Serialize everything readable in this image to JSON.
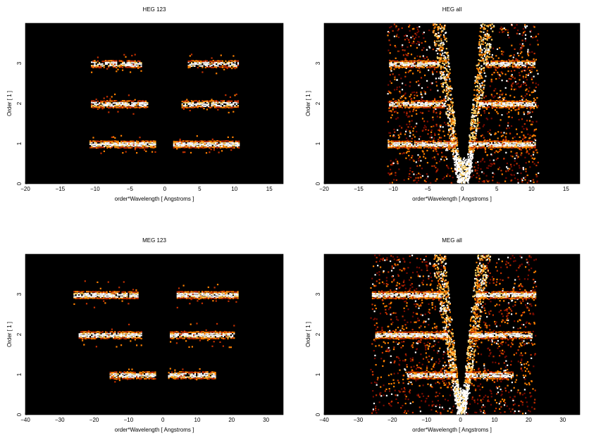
{
  "chart_data": [
    {
      "type": "heatmap",
      "title": "HEG 123",
      "xlabel": "order*Wavelength [ Angstroms ]",
      "ylabel": "Order [ 1 ]",
      "xlim": [
        -20,
        17
      ],
      "ylim": [
        0,
        4
      ],
      "xticks": [
        "−20",
        "−15",
        "−10",
        "−5",
        "0",
        "5",
        "10",
        "15"
      ],
      "xtick_values": [
        -20,
        -15,
        -10,
        -5,
        0,
        5,
        10,
        15
      ],
      "yticks": [
        "0",
        "1",
        "2",
        "3"
      ],
      "ytick_values": [
        0,
        1,
        2,
        3
      ],
      "grid": false,
      "background": "#000000",
      "colormap": [
        "#2a0000",
        "#7a0a00",
        "#c43000",
        "#ff8000",
        "#ffd060",
        "#ffffff"
      ],
      "bands": [
        {
          "order": 1,
          "x0": -10.8,
          "x1": -1.2,
          "density": 0.95,
          "halfwidth": 0.09
        },
        {
          "order": 1,
          "x0": 1.2,
          "x1": 10.7,
          "density": 0.95,
          "halfwidth": 0.09
        },
        {
          "order": 2,
          "x0": -10.6,
          "x1": -2.3,
          "density": 0.85,
          "halfwidth": 0.1
        },
        {
          "order": 2,
          "x0": 2.4,
          "x1": 10.6,
          "density": 0.85,
          "halfwidth": 0.1
        },
        {
          "order": 3,
          "x0": -10.6,
          "x1": -3.2,
          "density": 0.8,
          "halfwidth": 0.1
        },
        {
          "order": 3,
          "x0": 3.3,
          "x1": 10.6,
          "density": 0.8,
          "halfwidth": 0.1
        }
      ],
      "wedge": false
    },
    {
      "type": "heatmap",
      "title": "HEG all",
      "xlabel": "order*Wavelength [ Angstroms ]",
      "ylabel": "Order [ 1 ]",
      "xlim": [
        -20,
        17
      ],
      "ylim": [
        0,
        4
      ],
      "xticks": [
        "−20",
        "−15",
        "−10",
        "−5",
        "0",
        "5",
        "10",
        "15"
      ],
      "xtick_values": [
        -20,
        -15,
        -10,
        -5,
        0,
        5,
        10,
        15
      ],
      "yticks": [
        "0",
        "1",
        "2",
        "3"
      ],
      "ytick_values": [
        0,
        1,
        2,
        3
      ],
      "grid": false,
      "background": "#000000",
      "colormap": [
        "#2a0000",
        "#7a0a00",
        "#c43000",
        "#ff8000",
        "#ffd060",
        "#ffffff"
      ],
      "bands": [
        {
          "order": 1,
          "x0": -10.8,
          "x1": -1.0,
          "density": 0.95,
          "halfwidth": 0.1
        },
        {
          "order": 1,
          "x0": 1.0,
          "x1": 10.7,
          "density": 0.95,
          "halfwidth": 0.1
        },
        {
          "order": 2,
          "x0": -10.6,
          "x1": -2.5,
          "density": 0.9,
          "halfwidth": 0.1
        },
        {
          "order": 2,
          "x0": 2.4,
          "x1": 10.6,
          "density": 0.9,
          "halfwidth": 0.1
        },
        {
          "order": 3,
          "x0": -10.6,
          "x1": -3.3,
          "density": 0.85,
          "halfwidth": 0.1
        },
        {
          "order": 3,
          "x0": 3.4,
          "x1": 10.6,
          "density": 0.85,
          "halfwidth": 0.1
        }
      ],
      "wedge": true,
      "x_extent": [
        -10.9,
        10.9
      ]
    },
    {
      "type": "heatmap",
      "title": "MEG 123",
      "xlabel": "order*Wavelength [ Angstroms ]",
      "ylabel": "Order [ 1 ]",
      "xlim": [
        -40,
        35
      ],
      "ylim": [
        0,
        4
      ],
      "xticks": [
        "−40",
        "−30",
        "−20",
        "−10",
        "0",
        "10",
        "20",
        "30"
      ],
      "xtick_values": [
        -40,
        -30,
        -20,
        -10,
        0,
        10,
        20,
        30
      ],
      "yticks": [
        "0",
        "1",
        "2",
        "3"
      ],
      "ytick_values": [
        0,
        1,
        2,
        3
      ],
      "grid": false,
      "background": "#000000",
      "colormap": [
        "#2a0000",
        "#7a0a00",
        "#c43000",
        "#ff8000",
        "#ffd060",
        "#ffffff"
      ],
      "bands": [
        {
          "order": 1,
          "x0": -15.5,
          "x1": -2.0,
          "density": 0.85,
          "halfwidth": 0.07
        },
        {
          "order": 1,
          "x0": 1.5,
          "x1": 15.5,
          "density": 0.85,
          "halfwidth": 0.07
        },
        {
          "order": 2,
          "x0": -24.5,
          "x1": -6.0,
          "density": 0.9,
          "halfwidth": 0.12
        },
        {
          "order": 2,
          "x0": 2.0,
          "x1": 21.0,
          "density": 0.9,
          "halfwidth": 0.12
        },
        {
          "order": 3,
          "x0": -26.0,
          "x1": -7.0,
          "density": 0.95,
          "halfwidth": 0.14
        },
        {
          "order": 3,
          "x0": 4.0,
          "x1": 22.0,
          "density": 0.95,
          "halfwidth": 0.14
        }
      ],
      "wedge": false
    },
    {
      "type": "heatmap",
      "title": "MEG all",
      "xlabel": "order*Wavelength [ Angstroms ]",
      "ylabel": "Order [ 1 ]",
      "xlim": [
        -40,
        35
      ],
      "ylim": [
        0,
        4
      ],
      "xticks": [
        "−40",
        "−30",
        "−20",
        "−10",
        "0",
        "10",
        "20",
        "30"
      ],
      "xtick_values": [
        -40,
        -30,
        -20,
        -10,
        0,
        10,
        20,
        30
      ],
      "yticks": [
        "0",
        "1",
        "2",
        "3"
      ],
      "ytick_values": [
        0,
        1,
        2,
        3
      ],
      "grid": false,
      "background": "#000000",
      "colormap": [
        "#2a0000",
        "#7a0a00",
        "#c43000",
        "#ff8000",
        "#ffd060",
        "#ffffff"
      ],
      "bands": [
        {
          "order": 1,
          "x0": -15.5,
          "x1": -1.5,
          "density": 0.9,
          "halfwidth": 0.08
        },
        {
          "order": 1,
          "x0": 1.5,
          "x1": 15.5,
          "density": 0.9,
          "halfwidth": 0.08
        },
        {
          "order": 2,
          "x0": -25.0,
          "x1": -3.5,
          "density": 0.95,
          "halfwidth": 0.12
        },
        {
          "order": 2,
          "x0": 2.5,
          "x1": 21.0,
          "density": 0.95,
          "halfwidth": 0.12
        },
        {
          "order": 3,
          "x0": -26.0,
          "x1": -5.5,
          "density": 0.95,
          "halfwidth": 0.14
        },
        {
          "order": 3,
          "x0": 4.5,
          "x1": 22.0,
          "density": 0.95,
          "halfwidth": 0.14
        }
      ],
      "wedge": true,
      "x_extent": [
        -26.5,
        22.0
      ]
    }
  ]
}
